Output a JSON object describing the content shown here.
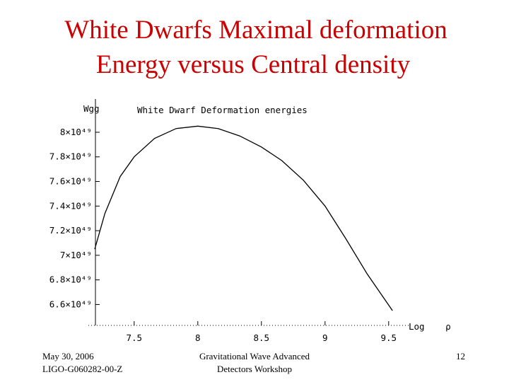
{
  "slide": {
    "title_lines": [
      "White Dwarfs Maximal deformation",
      "Energy  versus Central density"
    ],
    "footer_left": [
      "May 30, 2006",
      "LIGO-G060282-00-Z"
    ],
    "footer_center": [
      "Gravitational Wave Advanced",
      "Detectors Workshop"
    ],
    "page_number": "12"
  },
  "chart_data": {
    "type": "line",
    "title": "White Dwarf Deformation energies",
    "y_label": "Wgg",
    "x_label": "Log ρ",
    "x": [
      7.19,
      7.27,
      7.39,
      7.5,
      7.66,
      7.83,
      8.0,
      8.16,
      8.33,
      8.5,
      8.66,
      8.83,
      9.0,
      9.16,
      9.33,
      9.53
    ],
    "series": [
      {
        "color": "#000000",
        "values": [
          7.05e+49,
          7.34e+49,
          7.64e+49,
          7.8e+49,
          7.95e+49,
          8.03e+49,
          8.05e+49,
          8.03e+49,
          7.97e+49,
          7.88e+49,
          7.77e+49,
          7.61e+49,
          7.4e+49,
          7.14e+49,
          6.85e+49,
          6.55e+49
        ]
      }
    ],
    "xlim": [
      7.14,
      9.64
    ],
    "ylim": [
      6.43e+49,
      8.27e+49
    ],
    "xticks": [
      7.5,
      8,
      8.5,
      9,
      9.5
    ],
    "yticks": [
      {
        "value": 6.6e+49,
        "label": "6.6×10⁴⁹"
      },
      {
        "value": 6.8e+49,
        "label": "6.8×10⁴⁹"
      },
      {
        "value": 7e+49,
        "label": "7×10⁴⁹"
      },
      {
        "value": 7.2e+49,
        "label": "7.2×10⁴⁹"
      },
      {
        "value": 7.4e+49,
        "label": "7.4×10⁴⁹"
      },
      {
        "value": 7.6e+49,
        "label": "7.6×10⁴⁹"
      },
      {
        "value": 7.8e+49,
        "label": "7.8×10⁴⁹"
      },
      {
        "value": 8e+49,
        "label": "8×10⁴⁹"
      }
    ],
    "grid": false
  }
}
